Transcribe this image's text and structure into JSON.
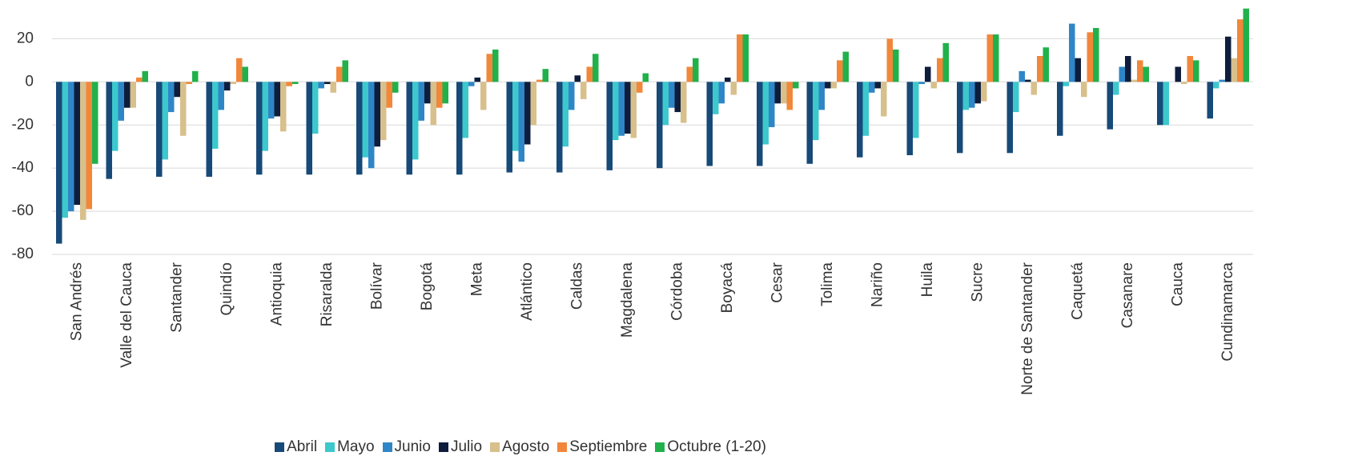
{
  "chart_data": {
    "type": "bar",
    "categories": [
      "San Andrés",
      "Valle del Cauca",
      "Santander",
      "Quindío",
      "Antioquia",
      "Risaralda",
      "Bolívar",
      "Bogotá",
      "Meta",
      "Atlántico",
      "Caldas",
      "Magdalena",
      "Córdoba",
      "Boyacá",
      "Cesar",
      "Tolima",
      "Nariño",
      "Huila",
      "Sucre",
      "Norte de Santander",
      "Caquetá",
      "Casanare",
      "Cauca",
      "Cundinamarca"
    ],
    "series": [
      {
        "name": "Abril",
        "color": "#174a78",
        "values": [
          -75,
          -45,
          -44,
          -44,
          -43,
          -43,
          -43,
          -43,
          -43,
          -42,
          -42,
          -41,
          -40,
          -39,
          -39,
          -38,
          -35,
          -34,
          -33,
          -33,
          -25,
          -22,
          -20,
          -17
        ]
      },
      {
        "name": "Mayo",
        "color": "#3cc8cc",
        "values": [
          -63,
          -32,
          -36,
          -31,
          -32,
          -24,
          -35,
          -36,
          -26,
          -32,
          -30,
          -27,
          -20,
          -15,
          -29,
          -27,
          -25,
          -26,
          -13,
          -14,
          -2,
          -6,
          -20,
          -3
        ]
      },
      {
        "name": "Junio",
        "color": "#2f86c6",
        "values": [
          -60,
          -18,
          -14,
          -13,
          -17,
          -3,
          -40,
          -18,
          -2,
          -37,
          -13,
          -25,
          -12,
          -10,
          -21,
          -13,
          -5,
          -1,
          -12,
          5,
          27,
          7,
          0,
          1
        ]
      },
      {
        "name": "Julio",
        "color": "#0e1d3c",
        "values": [
          -57,
          -12,
          -7,
          -4,
          -16,
          -1,
          -30,
          -10,
          2,
          -29,
          3,
          -24,
          -14,
          2,
          -10,
          -3,
          -3,
          7,
          -10,
          1,
          11,
          12,
          7,
          21
        ]
      },
      {
        "name": "Agosto",
        "color": "#d8c08c",
        "values": [
          -64,
          -12,
          -25,
          -1,
          -23,
          -5,
          -27,
          -20,
          -13,
          -20,
          -8,
          -26,
          -19,
          -6,
          -10,
          -3,
          -16,
          -3,
          -9,
          -6,
          -7,
          1,
          -1,
          11
        ]
      },
      {
        "name": "Septiembre",
        "color": "#f2873a",
        "values": [
          -59,
          2,
          -1,
          11,
          -2,
          7,
          -12,
          -12,
          13,
          1,
          7,
          -5,
          7,
          22,
          -13,
          10,
          20,
          11,
          22,
          12,
          23,
          10,
          12,
          29
        ]
      },
      {
        "name": "Octubre (1-20)",
        "color": "#21b14b",
        "values": [
          -38,
          5,
          5,
          7,
          -1,
          10,
          -5,
          -10,
          15,
          6,
          13,
          4,
          11,
          22,
          -3,
          14,
          15,
          18,
          22,
          16,
          25,
          7,
          10,
          34
        ]
      }
    ],
    "ylim": [
      -80,
      35
    ],
    "yticks": [
      -80,
      -60,
      -40,
      -20,
      0,
      20
    ],
    "grid": true,
    "legend": "bottom"
  }
}
